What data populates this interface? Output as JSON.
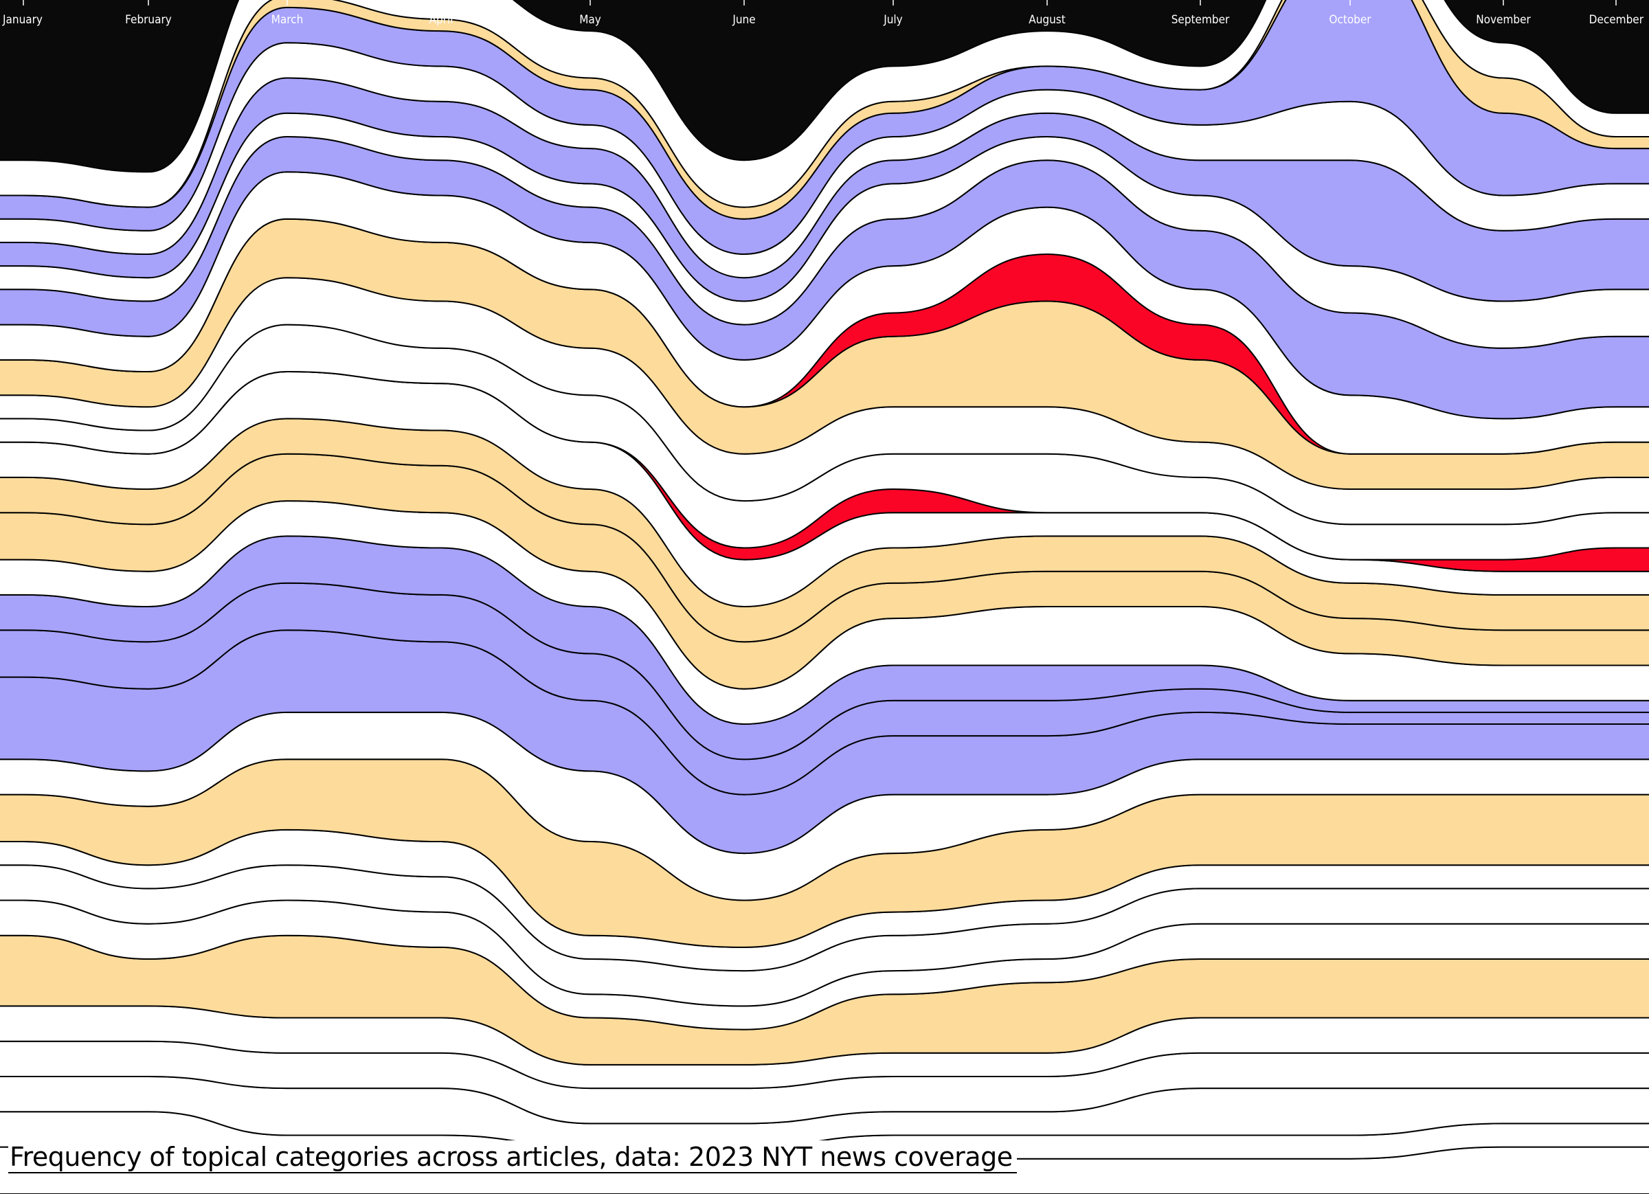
{
  "colors": {
    "background": "#0a0a0a",
    "white": "#ffffff",
    "purple": "#a7a3fb",
    "yellow": "#fddb9b",
    "red": "#fb0527",
    "outline": "#000000"
  },
  "caption": "Frequency of topical categories across articles, data: 2023 NYT news coverage",
  "chart_data": {
    "type": "area",
    "subtype": "streamgraph",
    "baseline": "bottom",
    "title": "Frequency of topical categories across articles, data: 2023 NYT news coverage",
    "x_axis": {
      "position": "top",
      "tick_labels": [
        "January",
        "February",
        "March",
        "April",
        "May",
        "June",
        "July",
        "August",
        "September",
        "October",
        "November",
        "December"
      ]
    },
    "categories": [
      "January",
      "February",
      "March",
      "April",
      "May",
      "June",
      "July",
      "August",
      "September",
      "October",
      "November",
      "December"
    ],
    "series": [
      {
        "color": "white",
        "values": [
          4,
          4,
          2,
          2,
          2,
          2,
          3,
          3,
          3,
          3,
          4,
          4
        ]
      },
      {
        "color": "white",
        "values": [
          3,
          3,
          3,
          3,
          2,
          2,
          2,
          2,
          2,
          2,
          2,
          2
        ]
      },
      {
        "color": "white",
        "values": [
          3,
          3,
          4,
          4,
          2,
          2,
          2,
          2,
          4,
          4,
          3,
          3
        ]
      },
      {
        "color": "white",
        "values": [
          3,
          3,
          3,
          3,
          3,
          3,
          3,
          3,
          3,
          3,
          3,
          3
        ]
      },
      {
        "color": "white",
        "values": [
          3,
          3,
          3,
          3,
          2,
          2,
          2,
          2,
          3,
          3,
          3,
          3
        ]
      },
      {
        "color": "yellow",
        "values": [
          6,
          4,
          7,
          6,
          4,
          3,
          5,
          6,
          5,
          5,
          5,
          5
        ]
      },
      {
        "color": "white",
        "values": [
          3,
          3,
          3,
          3,
          2,
          2,
          2,
          2,
          3,
          3,
          3,
          3
        ]
      },
      {
        "color": "white",
        "values": [
          3,
          3,
          3,
          3,
          3,
          3,
          3,
          3,
          3,
          3,
          3,
          3
        ]
      },
      {
        "color": "white",
        "values": [
          2,
          2,
          3,
          3,
          2,
          2,
          2,
          2,
          2,
          2,
          2,
          2
        ]
      },
      {
        "color": "yellow",
        "values": [
          4,
          5,
          6,
          7,
          8,
          4,
          5,
          6,
          6,
          6,
          6,
          6
        ]
      },
      {
        "color": "white",
        "values": [
          3,
          3,
          4,
          4,
          6,
          4,
          5,
          3,
          3,
          3,
          3,
          3
        ]
      },
      {
        "color": "purple",
        "values": [
          7,
          7,
          7,
          6,
          6,
          5,
          5,
          5,
          4,
          3,
          3,
          3
        ]
      },
      {
        "color": "purple",
        "values": [
          4,
          4,
          4,
          4,
          4,
          3,
          3,
          3,
          2,
          1,
          1,
          1
        ]
      },
      {
        "color": "purple",
        "values": [
          3,
          3,
          4,
          4,
          4,
          3,
          3,
          3,
          2,
          1,
          1,
          1
        ]
      },
      {
        "color": "white",
        "values": [
          3,
          3,
          3,
          3,
          3,
          3,
          4,
          5,
          5,
          4,
          3,
          3
        ]
      },
      {
        "color": "yellow",
        "values": [
          4,
          4,
          4,
          4,
          4,
          4,
          3,
          3,
          3,
          3,
          3,
          3
        ]
      },
      {
        "color": "yellow",
        "values": [
          3,
          3,
          3,
          3,
          3,
          3,
          3,
          3,
          3,
          3,
          3,
          3
        ]
      },
      {
        "color": "white",
        "values": [
          3,
          3,
          4,
          4,
          4,
          4,
          3,
          2,
          2,
          2,
          2,
          2
        ]
      },
      {
        "color": "red",
        "values": [
          0,
          0,
          0,
          0,
          0,
          1,
          2,
          0,
          0,
          0,
          1,
          2
        ]
      },
      {
        "color": "white",
        "values": [
          2,
          2,
          4,
          3,
          4,
          4,
          3,
          5,
          3,
          3,
          3,
          3
        ]
      },
      {
        "color": "white",
        "values": [
          2,
          2,
          4,
          4,
          4,
          4,
          4,
          4,
          3,
          3,
          3,
          3
        ]
      },
      {
        "color": "yellow",
        "values": [
          3,
          3,
          5,
          5,
          5,
          4,
          6,
          9,
          7,
          3,
          3,
          3
        ]
      },
      {
        "color": "red",
        "values": [
          0,
          0,
          0,
          0,
          0,
          0,
          2,
          4,
          3,
          0,
          0,
          0
        ]
      },
      {
        "color": "white",
        "values": [
          3,
          3,
          4,
          4,
          4,
          4,
          4,
          4,
          3,
          5,
          3,
          3
        ]
      },
      {
        "color": "purple",
        "values": [
          3,
          3,
          3,
          3,
          3,
          3,
          4,
          4,
          5,
          7,
          6,
          6
        ]
      },
      {
        "color": "white",
        "values": [
          2,
          2,
          2,
          2,
          2,
          2,
          3,
          2,
          3,
          4,
          4,
          4
        ]
      },
      {
        "color": "purple",
        "values": [
          2,
          2,
          3,
          3,
          3,
          2,
          2,
          2,
          3,
          9,
          6,
          6
        ]
      },
      {
        "color": "white",
        "values": [
          2,
          2,
          3,
          3,
          2,
          2,
          2,
          2,
          3,
          5,
          3,
          3
        ]
      },
      {
        "color": "purple",
        "values": [
          2,
          2,
          3,
          3,
          3,
          3,
          2,
          2,
          3,
          13,
          7,
          3
        ]
      },
      {
        "color": "yellow",
        "values": [
          0,
          0,
          1,
          1,
          1,
          1,
          1,
          0,
          0,
          1,
          3,
          1
        ]
      },
      {
        "color": "white",
        "values": [
          3,
          3,
          4,
          4,
          4,
          4,
          3,
          3,
          2,
          4,
          3,
          2
        ]
      }
    ]
  }
}
